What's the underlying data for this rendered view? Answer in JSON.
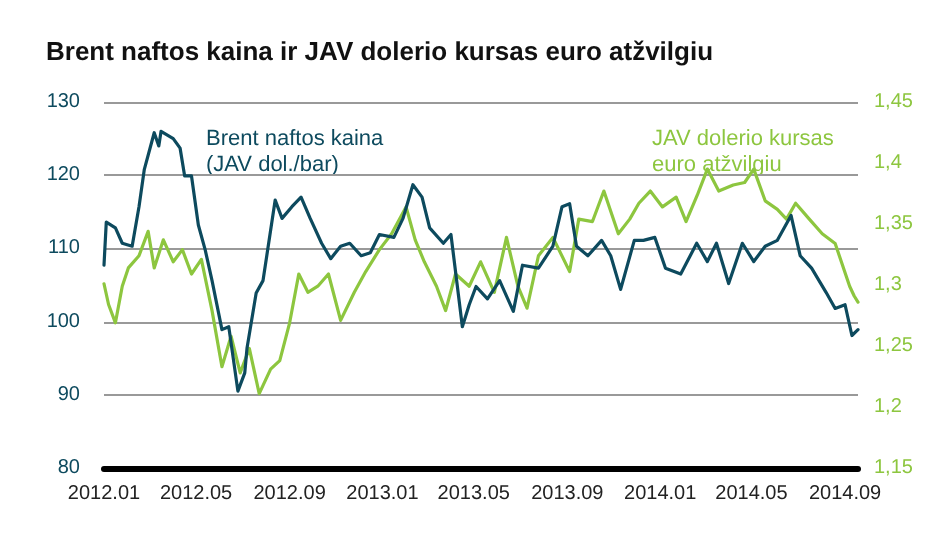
{
  "chart_data": {
    "type": "line",
    "title": "Brent naftos kaina ir JAV dolerio kursas euro atžvilgiu",
    "xlim": [
      "2012-01-01",
      "2014-09-18"
    ],
    "xticks": [
      {
        "value": "2012-01",
        "label": "2012.01"
      },
      {
        "value": "2012-05",
        "label": "2012.05"
      },
      {
        "value": "2012-09",
        "label": "2012.09"
      },
      {
        "value": "2013-01",
        "label": "2013.01"
      },
      {
        "value": "2013-05",
        "label": "2013.05"
      },
      {
        "value": "2013-09",
        "label": "2013.09"
      },
      {
        "value": "2014-01",
        "label": "2014.01"
      },
      {
        "value": "2014-05",
        "label": "2014.05"
      },
      {
        "value": "2014-09",
        "label": "2014.09"
      }
    ],
    "ylim": [
      80,
      130
    ],
    "yticks": [
      80,
      90,
      100,
      110,
      120,
      130
    ],
    "y2lim": [
      1.15,
      1.45
    ],
    "y2ticks": [
      {
        "value": 1.15,
        "label": "1,15"
      },
      {
        "value": 1.2,
        "label": "1,2"
      },
      {
        "value": 1.25,
        "label": "1,25"
      },
      {
        "value": 1.3,
        "label": "1,3"
      },
      {
        "value": 1.35,
        "label": "1,35"
      },
      {
        "value": 1.4,
        "label": "1,4"
      },
      {
        "value": 1.45,
        "label": "1,45"
      }
    ],
    "grid": "y",
    "legend": false,
    "marker": "none",
    "line_style": "solid",
    "series": [
      {
        "name": "Brent naftos kaina (JAV dol./bar)",
        "color": "#0d4a5e",
        "x": [
          "2012-01-01",
          "2012-01-04",
          "2012-01-16",
          "2012-01-25",
          "2012-02-07",
          "2012-02-16",
          "2012-02-23",
          "2012-03-07",
          "2012-03-13",
          "2012-03-16",
          "2012-04-01",
          "2012-04-10",
          "2012-04-16",
          "2012-04-25",
          "2012-05-04",
          "2012-05-13",
          "2012-05-22",
          "2012-06-04",
          "2012-06-13",
          "2012-06-25",
          "2012-07-04",
          "2012-07-07",
          "2012-07-19",
          "2012-07-28",
          "2012-08-13",
          "2012-08-22",
          "2012-09-04",
          "2012-09-16",
          "2012-09-28",
          "2012-10-13",
          "2012-10-25",
          "2012-11-07",
          "2012-11-19",
          "2012-12-04",
          "2012-12-16",
          "2012-12-28",
          "2013-01-16",
          "2013-01-28",
          "2013-02-10",
          "2013-02-22",
          "2013-03-04",
          "2013-03-22",
          "2013-04-01",
          "2013-04-16",
          "2013-04-25",
          "2013-05-04",
          "2013-05-19",
          "2013-06-04",
          "2013-06-22",
          "2013-07-04",
          "2013-07-25",
          "2013-08-13",
          "2013-08-25",
          "2013-09-04",
          "2013-09-13",
          "2013-09-28",
          "2013-10-16",
          "2013-10-28",
          "2013-11-10",
          "2013-11-28",
          "2013-12-10",
          "2013-12-25",
          "2014-01-08",
          "2014-01-28",
          "2014-02-18",
          "2014-03-04",
          "2014-03-16",
          "2014-04-01",
          "2014-04-19",
          "2014-05-04",
          "2014-05-19",
          "2014-06-04",
          "2014-06-22",
          "2014-07-04",
          "2014-07-19",
          "2014-08-07",
          "2014-08-19",
          "2014-09-01",
          "2014-09-10",
          "2014-09-18"
        ],
        "values": [
          107.7,
          113.6,
          112.8,
          110.7,
          110.3,
          115.7,
          120.8,
          125.8,
          124,
          126,
          125,
          123.7,
          119.9,
          119.9,
          113.2,
          109.8,
          105.6,
          98.9,
          99.3,
          90.5,
          93,
          96.4,
          103.9,
          105.6,
          116.6,
          114.1,
          115.7,
          117,
          114.1,
          110.7,
          108.6,
          110.3,
          110.7,
          109,
          109.4,
          111.9,
          111.5,
          114.1,
          118.7,
          117,
          112.8,
          110.7,
          111.9,
          99.3,
          102.3,
          104.8,
          103.1,
          105.6,
          101.4,
          107.7,
          107.3,
          110.3,
          115.7,
          116.1,
          110.3,
          109,
          111.1,
          109,
          104.4,
          111.1,
          111.1,
          111.5,
          107.3,
          106.5,
          110.7,
          108.2,
          110.7,
          105.2,
          110.7,
          108.2,
          110.3,
          111.1,
          114.5,
          109,
          107.3,
          104,
          101.8,
          102.3,
          98.1,
          98.9
        ]
      },
      {
        "name": "JAV dolerio kursas euro atžvilgiu",
        "color": "#8dc63f",
        "axis": "y2",
        "x": [
          "2012-01-01",
          "2012-01-07",
          "2012-01-16",
          "2012-01-25",
          "2012-02-02",
          "2012-02-16",
          "2012-02-28",
          "2012-03-07",
          "2012-03-19",
          "2012-04-01",
          "2012-04-13",
          "2012-04-25",
          "2012-05-08",
          "2012-05-22",
          "2012-06-04",
          "2012-06-16",
          "2012-06-28",
          "2012-07-10",
          "2012-07-23",
          "2012-08-07",
          "2012-08-19",
          "2012-09-01",
          "2012-09-13",
          "2012-09-25",
          "2012-10-08",
          "2012-10-22",
          "2012-11-07",
          "2012-11-25",
          "2012-12-10",
          "2012-12-28",
          "2013-01-13",
          "2013-02-01",
          "2013-02-13",
          "2013-02-25",
          "2013-03-13",
          "2013-03-25",
          "2013-04-07",
          "2013-04-25",
          "2013-05-10",
          "2013-05-28",
          "2013-06-13",
          "2013-06-28",
          "2013-07-10",
          "2013-07-25",
          "2013-08-13",
          "2013-09-04",
          "2013-09-16",
          "2013-10-04",
          "2013-10-19",
          "2013-11-07",
          "2013-11-22",
          "2013-12-04",
          "2013-12-19",
          "2014-01-04",
          "2014-01-22",
          "2014-02-04",
          "2014-02-19",
          "2014-03-04",
          "2014-03-19",
          "2014-04-07",
          "2014-04-22",
          "2014-05-04",
          "2014-05-19",
          "2014-06-04",
          "2014-06-16",
          "2014-06-28",
          "2014-07-16",
          "2014-08-02",
          "2014-08-19",
          "2014-09-07",
          "2014-09-13",
          "2014-09-18"
        ],
        "values": [
          1.301,
          1.284,
          1.269,
          1.299,
          1.314,
          1.324,
          1.344,
          1.314,
          1.337,
          1.319,
          1.329,
          1.309,
          1.321,
          1.279,
          1.233,
          1.258,
          1.228,
          1.248,
          1.211,
          1.231,
          1.238,
          1.269,
          1.309,
          1.294,
          1.299,
          1.309,
          1.271,
          1.294,
          1.311,
          1.329,
          1.342,
          1.364,
          1.337,
          1.319,
          1.299,
          1.279,
          1.309,
          1.299,
          1.319,
          1.294,
          1.339,
          1.299,
          1.281,
          1.324,
          1.339,
          1.311,
          1.354,
          1.352,
          1.377,
          1.342,
          1.354,
          1.367,
          1.377,
          1.364,
          1.372,
          1.352,
          1.374,
          1.395,
          1.377,
          1.382,
          1.384,
          1.395,
          1.369,
          1.362,
          1.354,
          1.367,
          1.354,
          1.342,
          1.334,
          1.299,
          1.291,
          1.286
        ]
      }
    ]
  }
}
